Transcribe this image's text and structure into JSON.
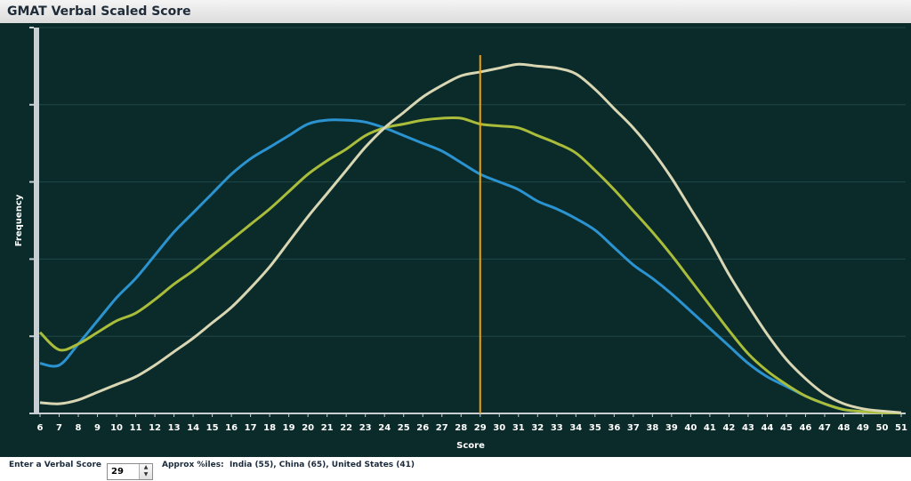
{
  "header": {
    "title": "GMAT Verbal Scaled Score"
  },
  "controls": {
    "score_label": "Enter a Verbal Score",
    "score_value": "29",
    "percentiles_label": "Approx %iles:",
    "percentiles_text": "India (55), China (65), United States (41)"
  },
  "colors": {
    "background": "#0b2a2a",
    "blue": "#2a93d0",
    "green": "#a9bd3a",
    "cream": "#d9d7b3",
    "marker": "#f0a000"
  },
  "chart_data": {
    "type": "line",
    "title": "GMAT Verbal Scaled Score",
    "xlabel": "Score",
    "ylabel": "Frequency",
    "x": [
      6,
      7,
      8,
      9,
      10,
      11,
      12,
      13,
      14,
      15,
      16,
      17,
      18,
      19,
      20,
      21,
      22,
      23,
      24,
      25,
      26,
      27,
      28,
      29,
      30,
      31,
      32,
      33,
      34,
      35,
      36,
      37,
      38,
      39,
      40,
      41,
      42,
      43,
      44,
      45,
      46,
      47,
      48,
      49,
      50,
      51
    ],
    "ylim": [
      0,
      100
    ],
    "y_ticks": [
      0,
      20,
      40,
      60,
      80,
      100
    ],
    "grid": true,
    "legend": "none",
    "marker_x": 29,
    "series": [
      {
        "color": "#2a93d0",
        "values": [
          13,
          12.5,
          18,
          24,
          30,
          35,
          41,
          47,
          52,
          57,
          62,
          66,
          69,
          72,
          75,
          76,
          76,
          75.5,
          74,
          72,
          70,
          68,
          65,
          62,
          60,
          58,
          55,
          53,
          50.5,
          47.5,
          43,
          38.5,
          35,
          31,
          26.5,
          22,
          17.5,
          13,
          9.5,
          7,
          4.5,
          2.5,
          1,
          0.5,
          0.3,
          0.1
        ]
      },
      {
        "color": "#a9bd3a",
        "values": [
          21,
          16.5,
          18,
          21,
          24,
          26,
          29.5,
          33.5,
          37,
          41,
          45,
          49,
          53,
          57.5,
          62,
          65.5,
          68.5,
          72,
          74,
          75,
          76,
          76.5,
          76.5,
          75,
          74.5,
          74,
          72,
          70,
          67.5,
          63,
          58,
          52.5,
          47,
          41,
          34.5,
          28,
          21.5,
          15.5,
          11,
          7.5,
          4.5,
          2.5,
          1,
          0.5,
          0.2,
          0.1
        ]
      },
      {
        "color": "#d9d7b3",
        "values": [
          2.8,
          2.5,
          3.5,
          5.5,
          7.5,
          9.5,
          12.5,
          16,
          19.5,
          23.5,
          27.5,
          32.5,
          38,
          44.5,
          51,
          57,
          63,
          69,
          74,
          78,
          82,
          85,
          87.5,
          88.5,
          89.5,
          90.5,
          90,
          89.5,
          88,
          84,
          79,
          74,
          68,
          61,
          53,
          45,
          36,
          28,
          20.5,
          14,
          9,
          5,
          2.5,
          1.2,
          0.6,
          0.2
        ]
      }
    ]
  }
}
